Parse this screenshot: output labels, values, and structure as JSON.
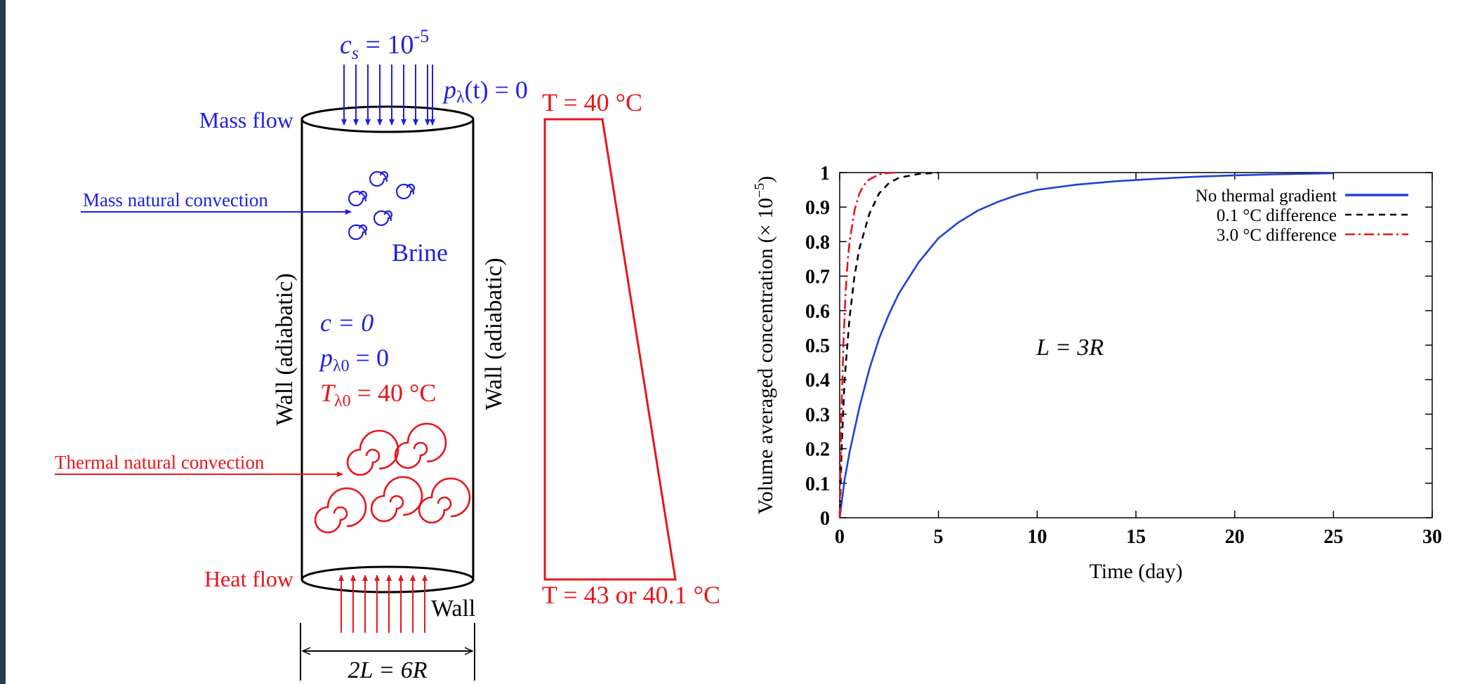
{
  "diagram": {
    "cs_prefix": "c",
    "cs_sub": "s",
    "cs_value": " = 10",
    "cs_exp": "-5",
    "plambda_p": "p",
    "plambda_sub": "λ",
    "plambda_rest": "(t) = 0",
    "t_top": "T = 40 °C",
    "t_bottom": "T = 43 or 40.1 °C",
    "mass_flow": "Mass flow",
    "mass_natural_convection": "Mass natural convection",
    "brine": "Brine",
    "wall_left": "Wall (adiabatic)",
    "wall_right": "Wall (adiabatic)",
    "c_zero": "c = 0",
    "p0_p": "p",
    "p0_sub": "λ0",
    "p0_rest": " = 0",
    "t0_t": "T",
    "t0_sub": "λ0",
    "t0_rest": " = 40 °C",
    "thermal_natural_convection": "Thermal natural convection",
    "heat_flow": "Heat flow",
    "wall_bottom": "Wall",
    "width_label": "2L = 6R"
  },
  "colors": {
    "blue": "#1f1fe0",
    "red": "#e8141b",
    "black": "#000000",
    "series_blue": "#2040d8",
    "sidebar": "#2b3a4c"
  },
  "chart_data": {
    "type": "line",
    "xlabel": "Time (day)",
    "ylabel_text": "Volume averaged concentration (× 10",
    "ylabel_exp": "−5",
    "ylabel_close": ")",
    "annotation": "L = 3R",
    "xlim": [
      0,
      30
    ],
    "ylim": [
      0,
      1
    ],
    "xticks": [
      0,
      5,
      10,
      15,
      20,
      25,
      30
    ],
    "yticks": [
      0,
      0.1,
      0.2,
      0.3,
      0.4,
      0.5,
      0.6,
      0.7,
      0.8,
      0.9,
      1
    ],
    "ytick_labels": [
      "0",
      "0.1",
      "0.2",
      "0.3",
      "0.4",
      "0.5",
      "0.6",
      "0.7",
      "0.8",
      "0.9",
      "1"
    ],
    "xtick_labels": [
      "0",
      "5",
      "10",
      "15",
      "20",
      "25",
      "30"
    ],
    "legend_position": "top-right",
    "series": [
      {
        "name": "No thermal gradient",
        "style": "solid",
        "color": "#2040d8",
        "x": [
          0,
          0.25,
          0.5,
          1,
          1.5,
          2,
          2.5,
          3,
          4,
          5,
          6,
          7,
          8,
          9,
          10,
          12,
          14,
          16,
          18,
          20,
          22,
          24,
          25
        ],
        "y": [
          0,
          0.11,
          0.19,
          0.32,
          0.43,
          0.52,
          0.59,
          0.65,
          0.74,
          0.81,
          0.855,
          0.89,
          0.915,
          0.935,
          0.95,
          0.965,
          0.975,
          0.982,
          0.988,
          0.992,
          0.995,
          0.997,
          0.998
        ]
      },
      {
        "name": "0.1 °C difference",
        "style": "dashed",
        "color": "#000000",
        "x": [
          0,
          0.1,
          0.25,
          0.5,
          0.75,
          1,
          1.5,
          2,
          2.5,
          3,
          4,
          5
        ],
        "y": [
          0,
          0.2,
          0.4,
          0.58,
          0.7,
          0.78,
          0.88,
          0.94,
          0.97,
          0.985,
          0.996,
          1.0
        ]
      },
      {
        "name": "3.0 °C difference",
        "style": "dashdot",
        "color": "#e8141b",
        "x": [
          0,
          0.05,
          0.1,
          0.2,
          0.3,
          0.4,
          0.5,
          0.75,
          1,
          1.25,
          1.5,
          2,
          2.5,
          3
        ],
        "y": [
          0,
          0.2,
          0.33,
          0.52,
          0.65,
          0.74,
          0.8,
          0.89,
          0.94,
          0.965,
          0.98,
          0.995,
          0.999,
          1.0
        ]
      }
    ]
  }
}
